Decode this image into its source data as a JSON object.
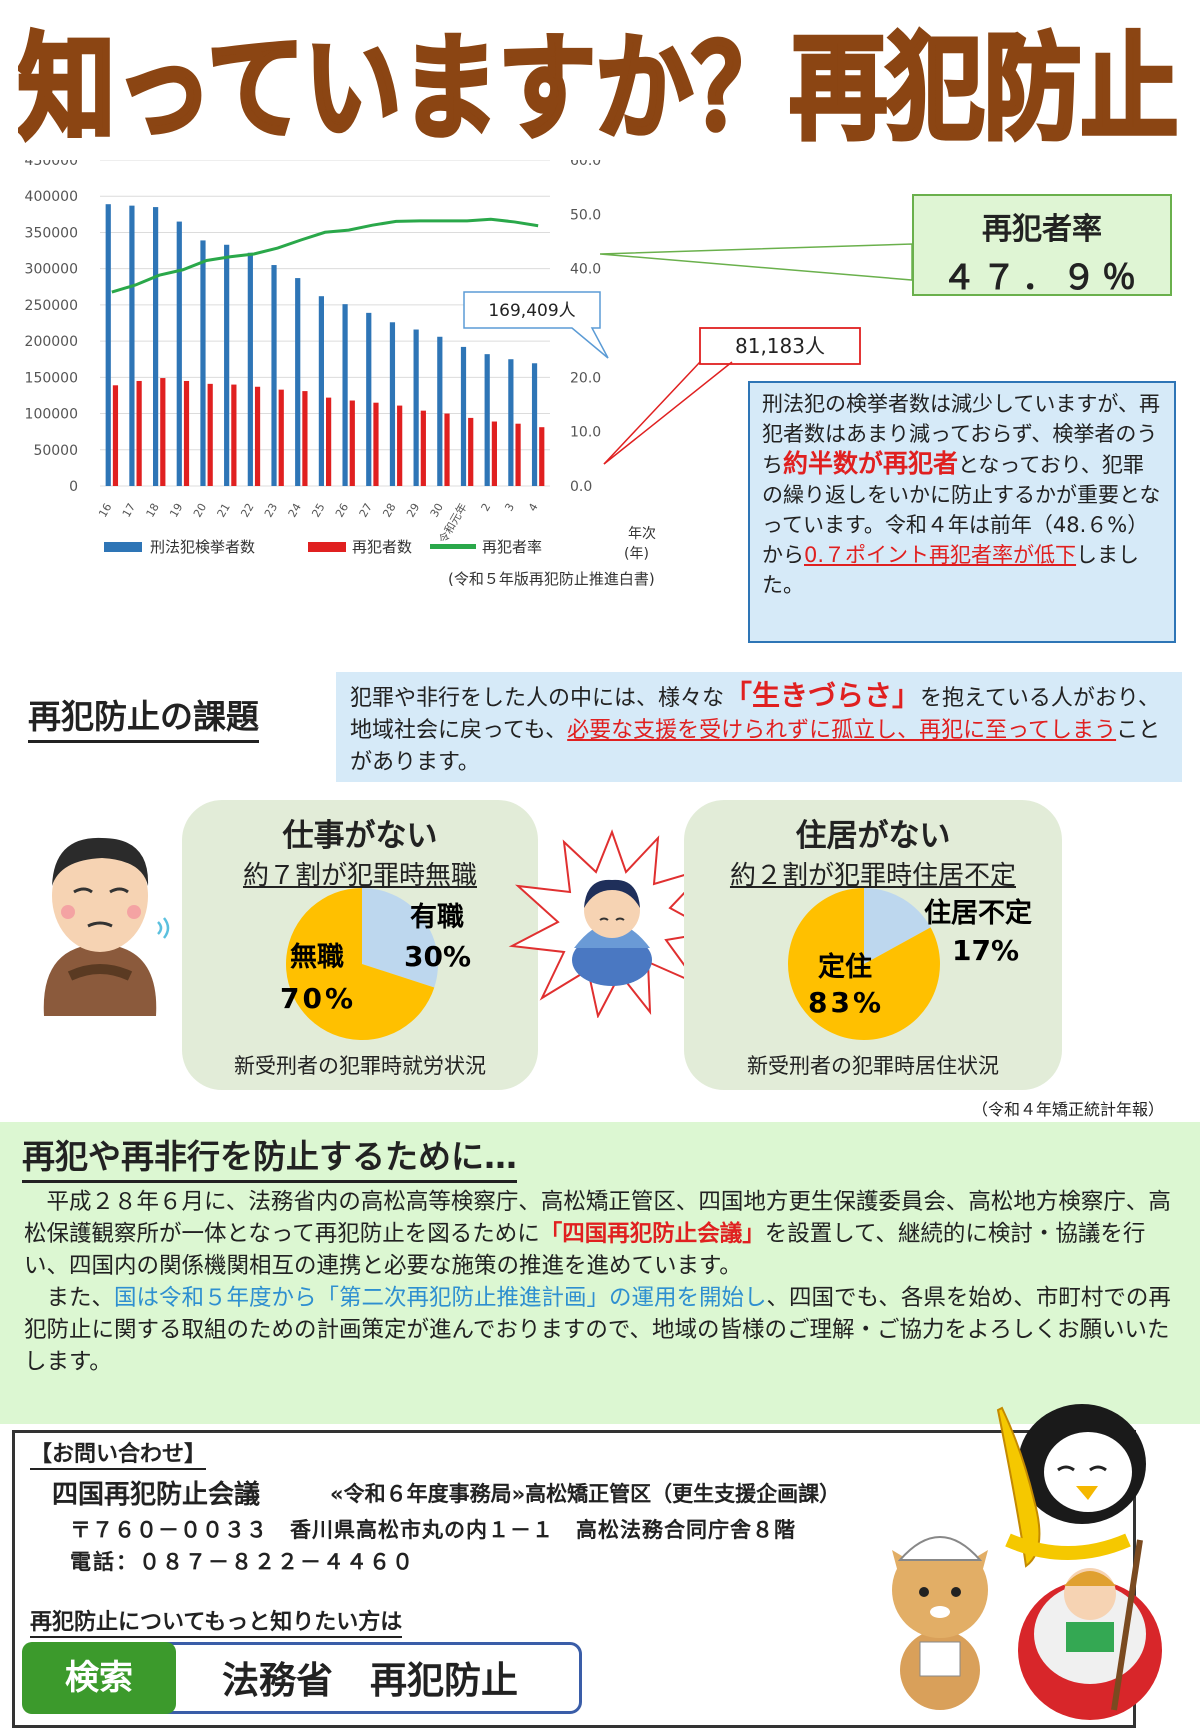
{
  "header": {
    "title": "知っていますか？再犯防止"
  },
  "chart_data": {
    "type": "bar",
    "categories": [
      "16",
      "17",
      "18",
      "19",
      "20",
      "21",
      "22",
      "23",
      "24",
      "25",
      "26",
      "27",
      "28",
      "29",
      "30",
      "令和元年",
      "2",
      "3",
      "4"
    ],
    "series": [
      {
        "name": "刑法犯検挙者数",
        "kind": "bar",
        "axis": "left",
        "color": "#2e75b6",
        "values": [
          389000,
          387000,
          385000,
          365000,
          339000,
          333000,
          322000,
          305000,
          287000,
          262000,
          251000,
          239000,
          226000,
          216000,
          206000,
          192000,
          182000,
          175000,
          169409
        ]
      },
      {
        "name": "再犯者数",
        "kind": "bar",
        "axis": "left",
        "color": "#e02020",
        "values": [
          139000,
          145000,
          149000,
          145000,
          141000,
          140000,
          137000,
          133000,
          131000,
          122000,
          118000,
          115000,
          111000,
          104000,
          100000,
          94000,
          89000,
          86000,
          81183
        ]
      },
      {
        "name": "再犯者率",
        "kind": "line",
        "axis": "right",
        "color": "#2aa84a",
        "values": [
          35.7,
          37.0,
          38.8,
          39.8,
          41.5,
          42.2,
          42.7,
          43.8,
          45.3,
          46.7,
          47.1,
          48.0,
          48.7,
          48.8,
          48.8,
          48.8,
          49.1,
          48.6,
          47.9
        ]
      }
    ],
    "y_left": {
      "min": 0,
      "max": 450000,
      "ticks": [
        "450000",
        "400000",
        "350000",
        "300000",
        "250000",
        "200000",
        "150000",
        "100000",
        "50000",
        "0"
      ]
    },
    "y_right": {
      "min": 0,
      "max": 60,
      "ticks": [
        "60.0",
        "50.0",
        "40.0",
        "30.0",
        "20.0",
        "10.0",
        "0.0"
      ]
    },
    "xlabel_1": "年次",
    "xlabel_2": "(年)",
    "source": "(令和５年版再犯防止推進白書)",
    "annotation_arrests": "169,409人",
    "annotation_repeat": "81,183人"
  },
  "rate_callout": {
    "label": "再犯者率",
    "value": "４７．９％"
  },
  "info": {
    "p1": "刑法犯の検挙者数は減少していますが、再犯者数はあまり減っておらず、検挙者のうち",
    "p1_emph": "約半数が再犯者",
    "p1_end": "となっており、犯罪の繰り返しをいかに防止するかが重要となっています。令和４年は前年（48.６%）から",
    "p2_emph": "0.７ポイント再犯者率が低下",
    "p2_end": "しました。"
  },
  "kadai": {
    "heading": "再犯防止の課題",
    "t1": "犯罪や非行をした人の中には、様々な",
    "emph": "「生きづらさ」",
    "t2": "を抱えている人がおり、地域社会に戻っても、",
    "underline": "必要な支援を受けられずに孤立し、再犯に至ってしまう",
    "t3": "ことがあります。"
  },
  "panel_left": {
    "title": "仕事がない",
    "subtitle": "約７割が犯罪時無職",
    "caption": "新受刑者の犯罪時就労状況",
    "slices": [
      {
        "label": "有職",
        "pct_text": "30%",
        "value": 30,
        "color": "#bdd7ee"
      },
      {
        "label": "無職",
        "pct_text": "70%",
        "value": 70,
        "color": "#ffc000"
      }
    ]
  },
  "panel_right": {
    "title": "住居がない",
    "subtitle": "約２割が犯罪時住居不定",
    "caption": "新受刑者の犯罪時居住状況",
    "slices": [
      {
        "label": "住居不定",
        "pct_text": "17%",
        "value": 17,
        "color": "#bdd7ee"
      },
      {
        "label": "定住",
        "pct_text": "83%",
        "value": 83,
        "color": "#ffc000"
      }
    ]
  },
  "source2": "（令和４年矯正統計年報）",
  "prevention": {
    "heading": "再犯や再非行を防止するために…",
    "p1a": "　平成２８年６月に、法務省内の高松高等検察庁、高松矯正管区、四国地方更生保護委員会、高松地方検察庁、高松保護観察所が一体となって再犯防止を図るために",
    "p1_emph": "「四国再犯防止会議」",
    "p1b": "を設置して、継続的に検討・協議を行い、四国内の関係機関相互の連携と必要な施策の推進を進めています。",
    "p2a": "　また、",
    "p2_emph": "国は令和５年度から「第二次再犯防止推進計画」の運用を開始し",
    "p2b": "、四国でも、各県を始め、市町村での再犯防止に関する取組のための計画策定が進んでおりますので、地域の皆様のご理解・ご協力をよろしくお願いいたします。"
  },
  "contact": {
    "heading": "【お問い合わせ】",
    "org": "四国再犯防止会議",
    "office": "«令和６年度事務局»高松矯正管区（更生支援企画課）",
    "address": "〒７６０－００３３　香川県高松市丸の内１－１　高松法務合同庁舎８階",
    "phone": "電話：０８７－８２２－４４６０",
    "more": "再犯防止についてもっと知りたい方は",
    "search_button": "検索",
    "search_text": "法務省　再犯防止"
  },
  "colors": {
    "title_brown": "#8b4513",
    "accent_red": "#e02020",
    "accent_blue": "#2e75b6",
    "green": "#3c9a2c"
  },
  "icons": [
    "worried-man-icon",
    "sad-child-icon",
    "penguin-mascot-icon",
    "cat-mascot-icon",
    "boat-mascot-icon"
  ]
}
